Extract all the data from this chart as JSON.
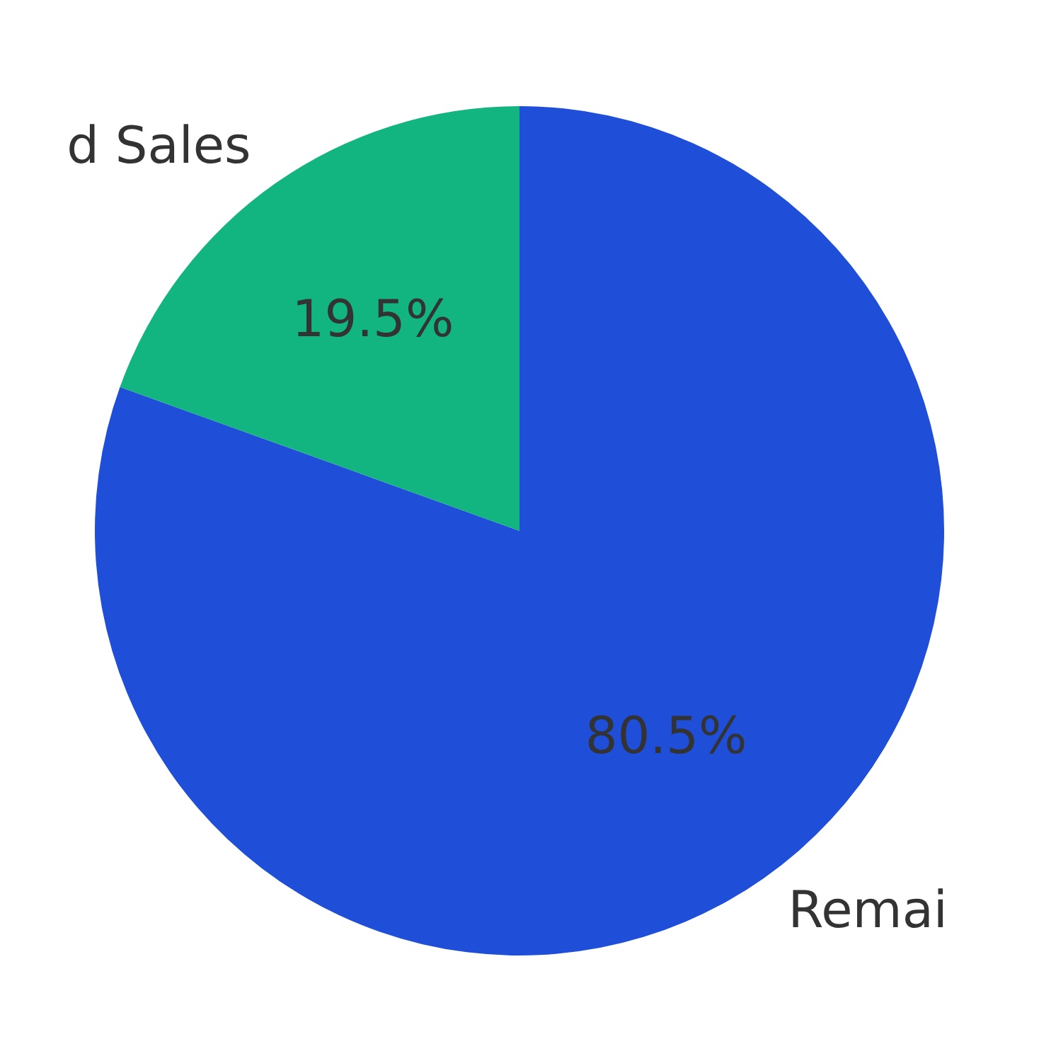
{
  "chart_data": {
    "type": "pie",
    "categories": [
      "Remai",
      "d Sales"
    ],
    "values": [
      80.5,
      19.5
    ],
    "colors": [
      "#1f4fd8",
      "#12b57f"
    ],
    "value_labels": [
      "80.5%",
      "19.5%"
    ]
  }
}
